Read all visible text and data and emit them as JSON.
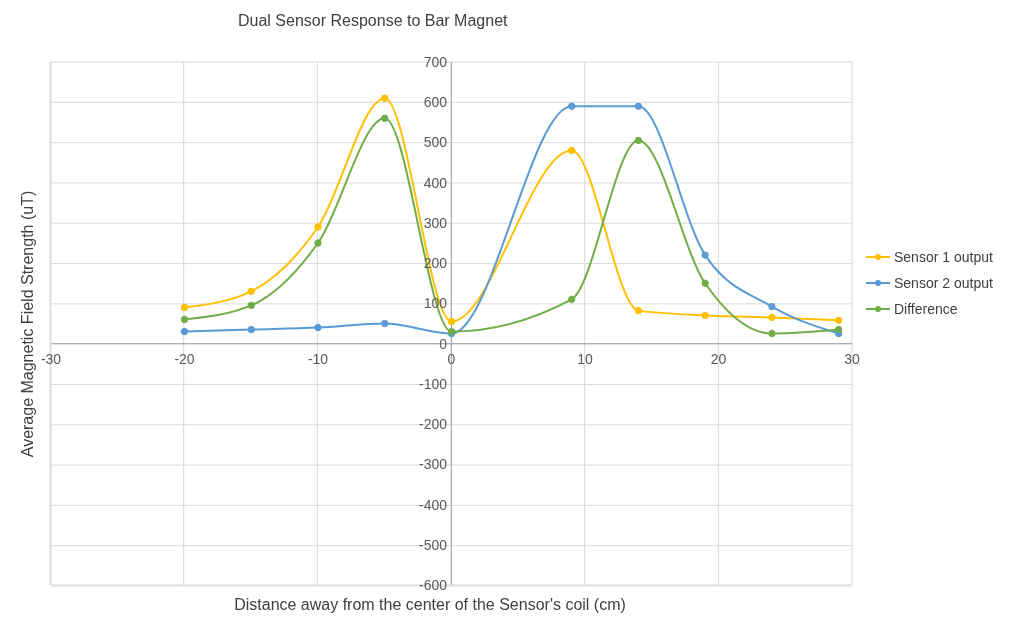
{
  "chart_data": {
    "type": "line",
    "title": "Dual Sensor Response to Bar Magnet",
    "xlabel": "Distance away from the center of the Sensor's coil (cm)",
    "ylabel": "Average Magnetic Field Strength (uT)",
    "x": [
      -20,
      -15,
      -10,
      -5,
      0,
      9,
      14,
      19,
      24,
      29
    ],
    "series": [
      {
        "name": "Sensor 1 output",
        "color": "#ffc000",
        "values": [
          90,
          130,
          290,
          610,
          55,
          480,
          82,
          70,
          65,
          58
        ]
      },
      {
        "name": "Sensor 2 output",
        "color": "#5b9bd5",
        "values": [
          30,
          35,
          40,
          50,
          25,
          590,
          590,
          220,
          92,
          25
        ]
      },
      {
        "name": "Difference",
        "color": "#70ad47",
        "values": [
          60,
          95,
          250,
          560,
          30,
          110,
          505,
          150,
          25,
          35
        ]
      }
    ],
    "xlim": [
      -30,
      30
    ],
    "xticks": [
      -30,
      -20,
      -10,
      0,
      10,
      20,
      30
    ],
    "ylim": [
      -600,
      700
    ],
    "yticks": [
      -600,
      -500,
      -400,
      -300,
      -200,
      -100,
      0,
      100,
      200,
      300,
      400,
      500,
      600,
      700
    ],
    "grid": true,
    "legend": "right",
    "marker": "circle",
    "line_style": "solid"
  }
}
